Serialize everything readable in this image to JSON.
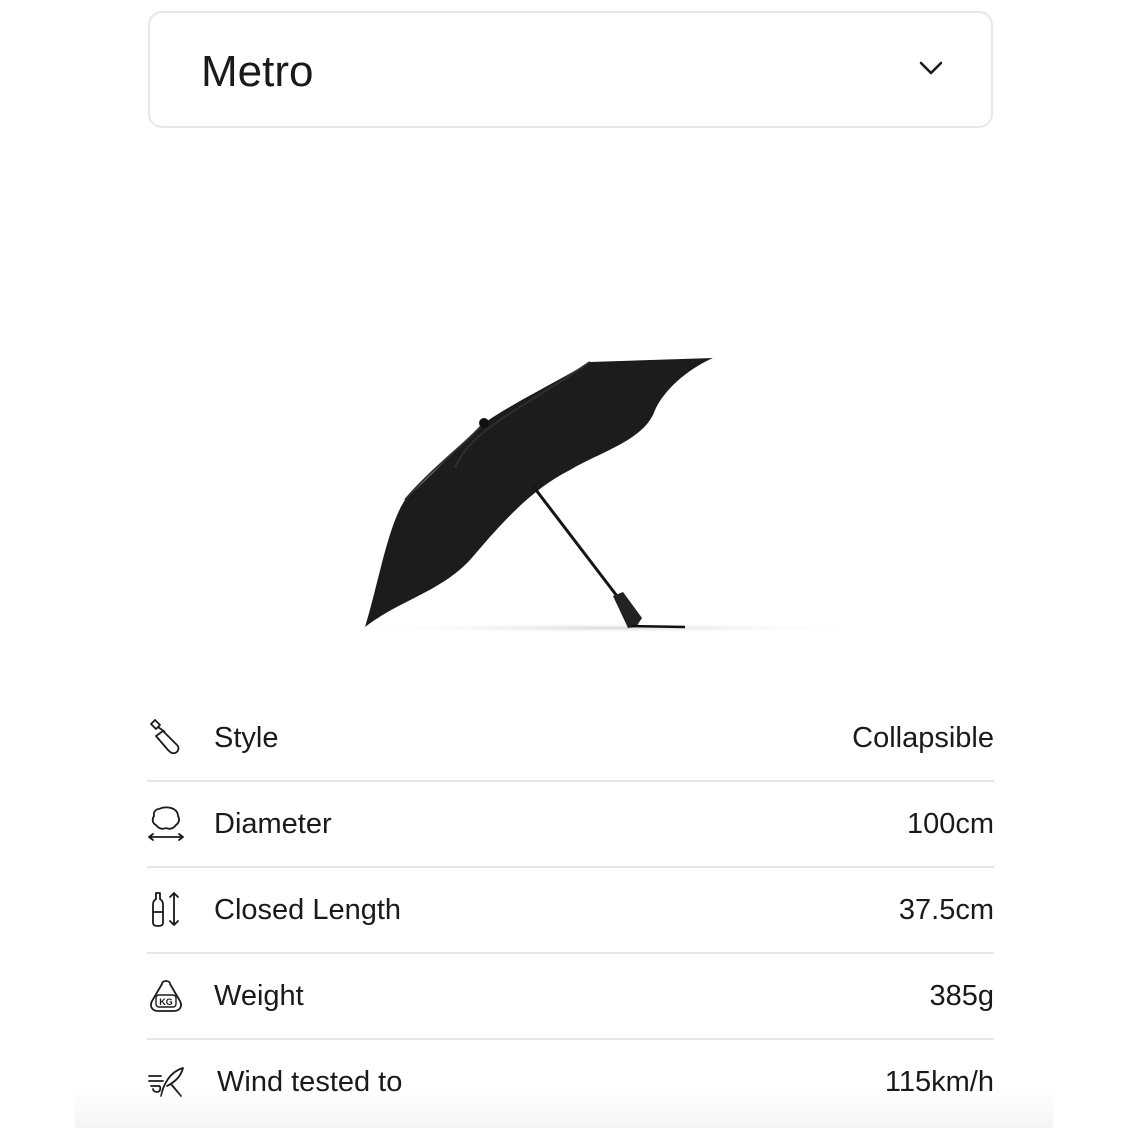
{
  "selector": {
    "value": "Metro",
    "icon": "chevron-down-icon"
  },
  "product_image": {
    "alt": "umbrella"
  },
  "specs": [
    {
      "icon": "umbrella-closed-icon",
      "label": "Style",
      "value": "Collapsible"
    },
    {
      "icon": "diameter-icon",
      "label": "Diameter",
      "value": "100cm"
    },
    {
      "icon": "closed-length-icon",
      "label": "Closed Length",
      "value": "37.5cm"
    },
    {
      "icon": "weight-kg-icon",
      "label": "Weight",
      "value": "385g",
      "icon_text": "KG"
    },
    {
      "icon": "wind-icon",
      "label": "Wind tested to",
      "value": "115km/h"
    }
  ]
}
